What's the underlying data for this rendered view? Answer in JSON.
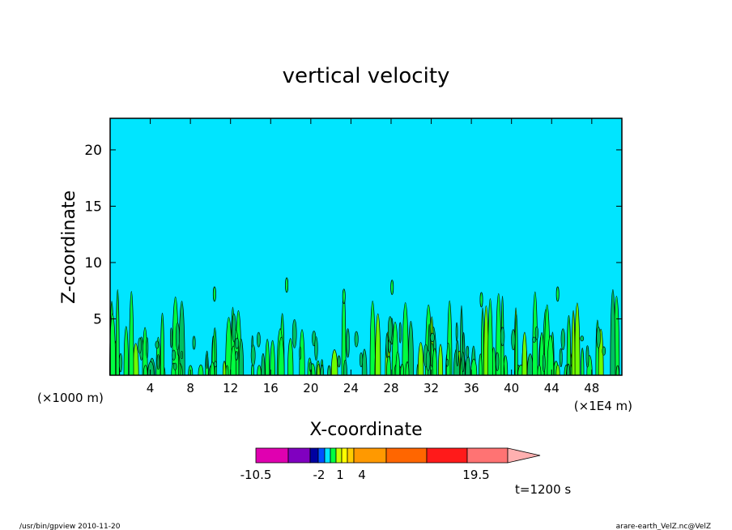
{
  "chart_data": {
    "type": "contour",
    "title": "vertical velocity",
    "xlabel": "X-coordinate",
    "ylabel": "Z-coordinate",
    "x_units_note": "(×1E4 m)",
    "z_units_note": "(×1000 m)",
    "xlim": [
      0,
      51
    ],
    "ylim": [
      0,
      22.8
    ],
    "x_ticks": [
      4,
      8,
      12,
      16,
      20,
      24,
      28,
      32,
      36,
      40,
      44,
      48
    ],
    "y_ticks": [
      5,
      10,
      15,
      20
    ],
    "background_color": "#00e5ff",
    "colorbar": {
      "colors": [
        "#e000b0",
        "#8000c0",
        "#0000a0",
        "#0050ff",
        "#00e5ff",
        "#00ff40",
        "#c8ff00",
        "#ffff00",
        "#ffcc00",
        "#ff9900",
        "#ff6600",
        "#ff1a1a",
        "#ff7373",
        "#ffb0b0"
      ],
      "labels": [
        "-10.5",
        "-2",
        "1",
        "4",
        "19.5"
      ]
    },
    "time_label": "t=1200 s"
  },
  "footer": {
    "left": "/usr/bin/gpview   2010-11-20",
    "right": "arare-earth_VelZ.nc@VelZ"
  }
}
